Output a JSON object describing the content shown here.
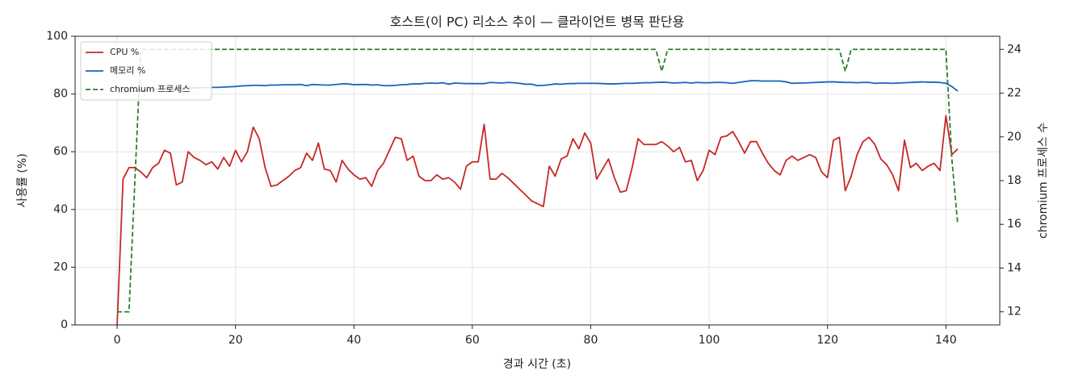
{
  "chart_data": {
    "type": "line",
    "title": "호스트(이 PC) 리소스 추이 — 클라이언트 병목 판단용",
    "xlabel": "경과 시간 (초)",
    "ylabel": "사용률 (%)",
    "y2label": "chromium 프로세스 수",
    "x": [
      0,
      1,
      2,
      3,
      4,
      5,
      6,
      7,
      8,
      9,
      10,
      11,
      12,
      13,
      14,
      15,
      16,
      17,
      18,
      19,
      20,
      21,
      22,
      23,
      24,
      25,
      26,
      27,
      28,
      29,
      30,
      31,
      32,
      33,
      34,
      35,
      36,
      37,
      38,
      39,
      40,
      41,
      42,
      43,
      44,
      45,
      46,
      47,
      48,
      49,
      50,
      51,
      52,
      53,
      54,
      55,
      56,
      57,
      58,
      59,
      60,
      61,
      62,
      63,
      64,
      65,
      66,
      67,
      68,
      69,
      70,
      71,
      72,
      73,
      74,
      75,
      76,
      77,
      78,
      79,
      80,
      81,
      82,
      83,
      84,
      85,
      86,
      87,
      88,
      89,
      90,
      91,
      92,
      93,
      94,
      95,
      96,
      97,
      98,
      99,
      100,
      101,
      102,
      103,
      104,
      105,
      106,
      107,
      108,
      109,
      110,
      111,
      112,
      113,
      114,
      115,
      116,
      117,
      118,
      119,
      120,
      121,
      122,
      123,
      124,
      125,
      126,
      127,
      128,
      129,
      130,
      131,
      132,
      133,
      134,
      135,
      136,
      137,
      138,
      139,
      140,
      141,
      142
    ],
    "series": [
      {
        "name": "CPU %",
        "color": "#c62828",
        "dash": false,
        "values": [
          0,
          50.5,
          54.5,
          54.5,
          53,
          51,
          54.5,
          56,
          60.5,
          59.5,
          48.5,
          49.5,
          60,
          58,
          57,
          55.5,
          56.5,
          54,
          58,
          55,
          60.5,
          56.5,
          60,
          68.5,
          64.5,
          54.5,
          48,
          48.5,
          50,
          51.5,
          53.5,
          54.5,
          59.5,
          57,
          63,
          54,
          53.5,
          49.5,
          57,
          54,
          52,
          50.5,
          51,
          48,
          53.5,
          56,
          60.5,
          65,
          64.5,
          57,
          58.5,
          51.5,
          50,
          50,
          52,
          50.5,
          51,
          49.5,
          47,
          55,
          56.5,
          56.5,
          69.5,
          50.5,
          50.5,
          52.5,
          51,
          49,
          47,
          45,
          43,
          42,
          41,
          55,
          51.5,
          57.5,
          58.5,
          64.5,
          61,
          66.5,
          63,
          50.5,
          54,
          57.5,
          51,
          46,
          46.5,
          54.5,
          64.5,
          62.5,
          62.5,
          62.5,
          63.5,
          62,
          60,
          61.5,
          56.5,
          57,
          50,
          53.5,
          60.5,
          59,
          65,
          65.5,
          67,
          63.5,
          59.5,
          63.5,
          63.5,
          59.5,
          56,
          53.5,
          52,
          57,
          58.5,
          57,
          58,
          59,
          58,
          53,
          51,
          64,
          65,
          46.5,
          51.5,
          59,
          63.5,
          65,
          62.5,
          57.5,
          55.5,
          52,
          46.5,
          64,
          54.5,
          56,
          53.5,
          55,
          56,
          53.5,
          72.5,
          59,
          61
        ]
      },
      {
        "name": "메모리 %",
        "color": "#1565c0",
        "dash": false,
        "values": [
          80.5,
          80.6,
          80.8,
          81.0,
          81.2,
          81.4,
          81.6,
          81.7,
          81.8,
          81.9,
          82.0,
          82.0,
          82.1,
          82.1,
          82.2,
          82.2,
          82.3,
          82.3,
          82.4,
          82.5,
          82.6,
          82.8,
          82.9,
          83.0,
          83.0,
          82.9,
          83.1,
          83.1,
          83.2,
          83.2,
          83.2,
          83.3,
          82.9,
          83.3,
          83.2,
          83.1,
          83.1,
          83.3,
          83.5,
          83.5,
          83.2,
          83.3,
          83.3,
          83.1,
          83.2,
          82.9,
          82.9,
          83.0,
          83.2,
          83.3,
          83.5,
          83.5,
          83.7,
          83.8,
          83.7,
          83.9,
          83.4,
          83.8,
          83.7,
          83.6,
          83.6,
          83.6,
          83.6,
          84.0,
          83.9,
          83.8,
          84.0,
          83.9,
          83.7,
          83.4,
          83.4,
          82.9,
          83.0,
          83.2,
          83.5,
          83.4,
          83.6,
          83.6,
          83.7,
          83.7,
          83.7,
          83.7,
          83.6,
          83.5,
          83.5,
          83.6,
          83.7,
          83.7,
          83.8,
          83.9,
          83.9,
          84.0,
          84.1,
          84.0,
          83.8,
          83.9,
          84.0,
          83.8,
          84.0,
          83.9,
          83.9,
          84.0,
          84.0,
          83.9,
          83.7,
          84.0,
          84.3,
          84.6,
          84.6,
          84.5,
          84.5,
          84.5,
          84.5,
          84.2,
          83.7,
          83.8,
          83.8,
          83.9,
          84.0,
          84.1,
          84.2,
          84.2,
          84.1,
          84.0,
          84.0,
          83.9,
          84.0,
          84.0,
          83.7,
          83.8,
          83.8,
          83.7,
          83.8,
          83.9,
          84.0,
          84.1,
          84.2,
          84.1,
          84.1,
          84.0,
          83.7,
          82.6,
          81.0
        ]
      },
      {
        "name": "chromium 프로세스",
        "color": "#2e7d32",
        "dash": true,
        "axis": "y2",
        "values": [
          12,
          12,
          12,
          18,
          24,
          24,
          24,
          24,
          24,
          24,
          24,
          24,
          24,
          24,
          24,
          24,
          24,
          24,
          24,
          24,
          24,
          24,
          24,
          24,
          24,
          24,
          24,
          24,
          24,
          24,
          24,
          24,
          24,
          24,
          24,
          24,
          24,
          24,
          24,
          24,
          24,
          24,
          24,
          24,
          24,
          24,
          24,
          24,
          24,
          24,
          24,
          24,
          24,
          24,
          24,
          24,
          24,
          24,
          24,
          24,
          24,
          24,
          24,
          24,
          24,
          24,
          24,
          24,
          24,
          24,
          24,
          24,
          24,
          24,
          24,
          24,
          24,
          24,
          24,
          24,
          24,
          24,
          24,
          24,
          24,
          24,
          24,
          24,
          24,
          24,
          24,
          24,
          23,
          24,
          24,
          24,
          24,
          24,
          24,
          24,
          24,
          24,
          24,
          24,
          24,
          24,
          24,
          24,
          24,
          24,
          24,
          24,
          24,
          24,
          24,
          24,
          24,
          24,
          24,
          24,
          24,
          24,
          24,
          23,
          24,
          24,
          24,
          24,
          24,
          24,
          24,
          24,
          24,
          24,
          24,
          24,
          24,
          24,
          24,
          24,
          24,
          19,
          16
        ]
      }
    ],
    "xlim": [
      -7.1,
      149.1
    ],
    "xticks": [
      0,
      20,
      40,
      60,
      80,
      100,
      120,
      140
    ],
    "ylim": [
      0,
      100
    ],
    "yticks": [
      0,
      20,
      40,
      60,
      80,
      100
    ],
    "y2lim": [
      11.4,
      24.6
    ],
    "y2ticks": [
      12,
      14,
      16,
      18,
      20,
      22,
      24
    ],
    "grid": true,
    "legend": "upper-left"
  }
}
